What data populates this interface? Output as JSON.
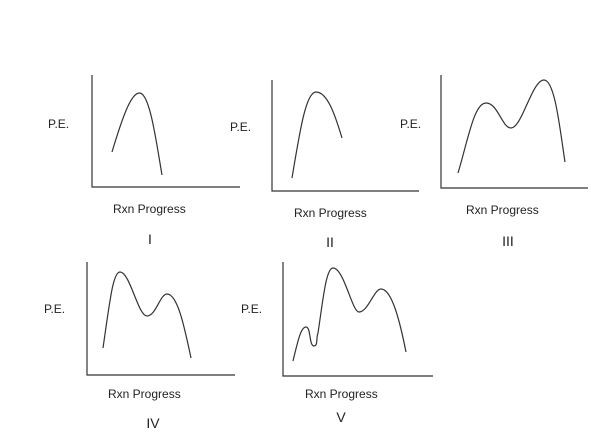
{
  "colors": {
    "ink": "#333333",
    "background": "#ffffff"
  },
  "diagrams": [
    {
      "numeral": "I",
      "ylabel": "P.E.",
      "xlabel": "Rxn Progress"
    },
    {
      "numeral": "II",
      "ylabel": "P.E.",
      "xlabel": "Rxn Progress"
    },
    {
      "numeral": "III",
      "ylabel": "P.E.",
      "xlabel": "Rxn Progress"
    },
    {
      "numeral": "IV",
      "ylabel": "P.E.",
      "xlabel": "Rxn Progress"
    },
    {
      "numeral": "V",
      "ylabel": "P.E.",
      "xlabel": "Rxn Progress"
    }
  ]
}
